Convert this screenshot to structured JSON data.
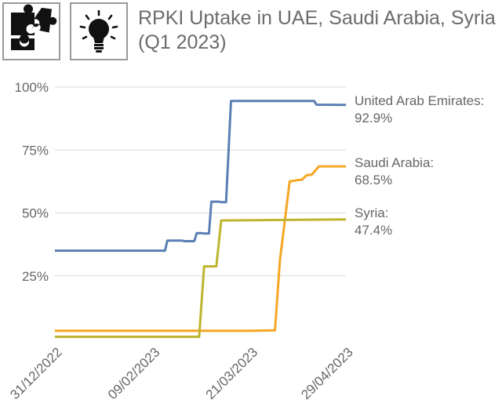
{
  "icons": {
    "puzzle": "puzzle-icon",
    "lightbulb": "lightbulb-icon"
  },
  "title": {
    "line1": "RPKI Uptake in UAE, Saudi Arabia, Syria",
    "line2": "(Q1 2023)"
  },
  "chart_data": {
    "type": "line",
    "title": "RPKI Uptake in UAE, Saudi Arabia, Syria (Q1 2023)",
    "xlabel": "",
    "ylabel": "",
    "x_range": [
      "2022-12-31",
      "2023-04-29"
    ],
    "ylim": [
      0,
      100
    ],
    "grid": true,
    "legend": "end-of-line labels",
    "y_ticks": [
      {
        "value": 25,
        "label": "25%"
      },
      {
        "value": 50,
        "label": "50%"
      },
      {
        "value": 75,
        "label": "75%"
      },
      {
        "value": 100,
        "label": "100%"
      }
    ],
    "x_ticks": [
      {
        "date": "2022-12-31",
        "label": "31/12/2022"
      },
      {
        "date": "2023-02-09",
        "label": "09/02/2023"
      },
      {
        "date": "2023-03-21",
        "label": "21/03/2023"
      },
      {
        "date": "2023-04-29",
        "label": "29/04/2023"
      }
    ],
    "series": [
      {
        "name": "United Arab Emirates:",
        "value_label": "92.9%",
        "color": "#5b7fb4",
        "points": [
          [
            "2022-12-31",
            35.0
          ],
          [
            "2023-02-14",
            35.0
          ],
          [
            "2023-02-15",
            39.0
          ],
          [
            "2023-02-21",
            39.0
          ],
          [
            "2023-02-22",
            38.8
          ],
          [
            "2023-02-26",
            38.8
          ],
          [
            "2023-02-27",
            42.0
          ],
          [
            "2023-03-01",
            42.0
          ],
          [
            "2023-03-02",
            41.8
          ],
          [
            "2023-03-04",
            41.8
          ],
          [
            "2023-03-05",
            54.5
          ],
          [
            "2023-03-08",
            54.5
          ],
          [
            "2023-03-09",
            54.3
          ],
          [
            "2023-03-11",
            54.3
          ],
          [
            "2023-03-13",
            94.5
          ],
          [
            "2023-04-16",
            94.5
          ],
          [
            "2023-04-17",
            93.0
          ],
          [
            "2023-04-29",
            92.9
          ]
        ]
      },
      {
        "name": "Saudi Arabia:",
        "value_label": "68.5%",
        "color": "#f5a623",
        "points": [
          [
            "2022-12-31",
            3.2
          ],
          [
            "2023-03-21",
            3.2
          ],
          [
            "2023-03-28",
            3.3
          ],
          [
            "2023-03-31",
            3.4
          ],
          [
            "2023-04-02",
            31.0
          ],
          [
            "2023-04-06",
            62.5
          ],
          [
            "2023-04-09",
            63.0
          ],
          [
            "2023-04-11",
            63.2
          ],
          [
            "2023-04-13",
            65.0
          ],
          [
            "2023-04-15",
            65.2
          ],
          [
            "2023-04-18",
            68.5
          ],
          [
            "2023-04-29",
            68.5
          ]
        ]
      },
      {
        "name": "Syria:",
        "value_label": "47.4%",
        "color": "#bdb52e",
        "points": [
          [
            "2022-12-31",
            0.8
          ],
          [
            "2023-02-28",
            0.8
          ],
          [
            "2023-03-02",
            28.8
          ],
          [
            "2023-03-07",
            28.8
          ],
          [
            "2023-03-09",
            47.0
          ],
          [
            "2023-04-29",
            47.4
          ]
        ]
      }
    ]
  }
}
